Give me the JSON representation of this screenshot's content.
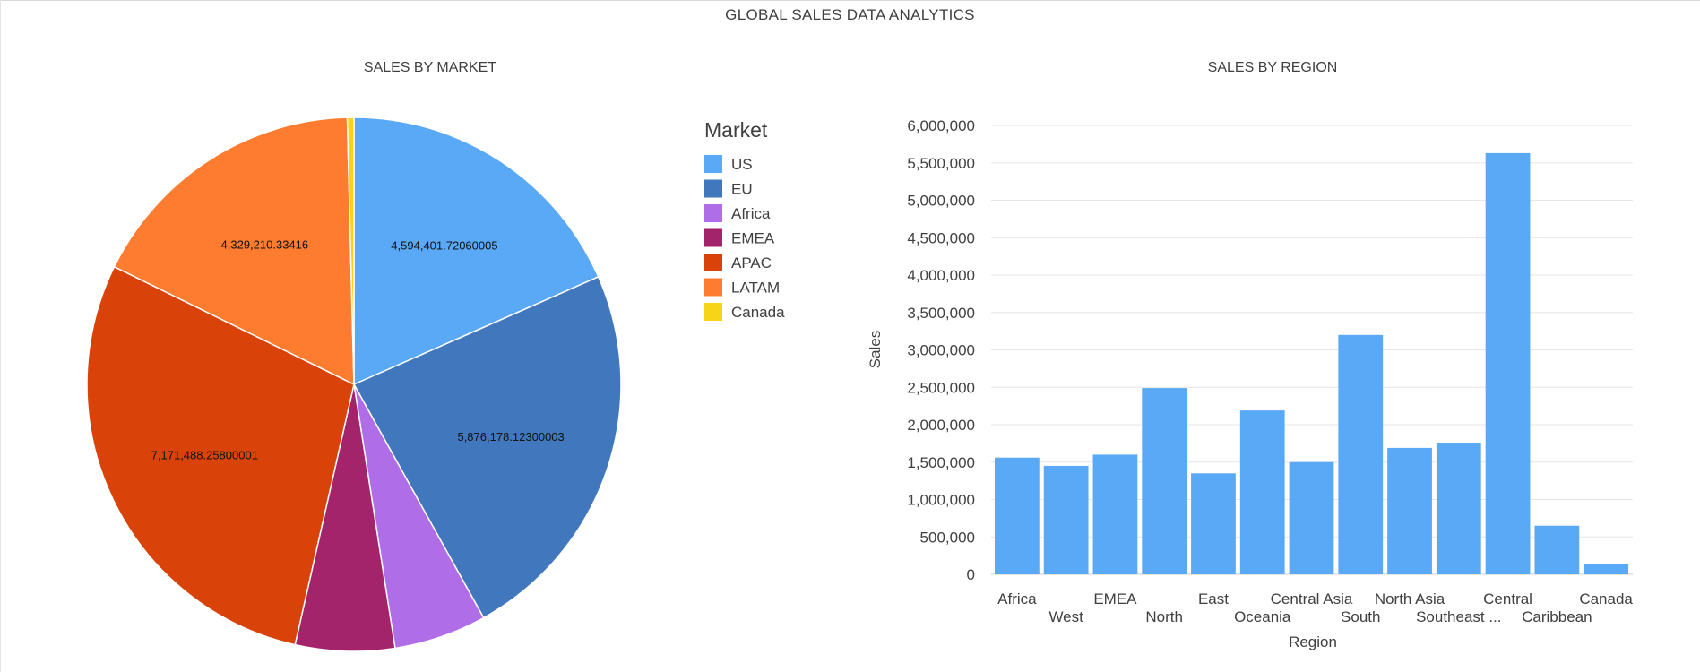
{
  "dashboard": {
    "title": "GLOBAL SALES DATA ANALYTICS"
  },
  "chart_data": [
    {
      "type": "pie",
      "title": "SALES BY MARKET",
      "legend_title": "Market",
      "legend_position": "right",
      "slices": [
        {
          "label": "US",
          "value": 4594401.72060005,
          "display": "4,594,401.72060005",
          "color": "#5aa9f6"
        },
        {
          "label": "EU",
          "value": 5876178.12300003,
          "display": "5,876,178.12300003",
          "color": "#4178bd"
        },
        {
          "label": "Africa",
          "value": 1400000,
          "display": "",
          "color": "#b06de8"
        },
        {
          "label": "EMEA",
          "value": 1500000,
          "display": "",
          "color": "#a3246b"
        },
        {
          "label": "APAC",
          "value": 7171488.25800001,
          "display": "7,171,488.25800001",
          "color": "#d9430a"
        },
        {
          "label": "LATAM",
          "value": 4329210.33416,
          "display": "4,329,210.33416",
          "color": "#fd7c30"
        },
        {
          "label": "Canada",
          "value": 100000,
          "display": "",
          "color": "#f7d417"
        }
      ]
    },
    {
      "type": "bar",
      "title": "SALES BY REGION",
      "xlabel": "Region",
      "ylabel": "Sales",
      "ylim": [
        0,
        6000000
      ],
      "yticks": [
        "0",
        "500,000",
        "1,000,000",
        "1,500,000",
        "2,000,000",
        "2,500,000",
        "3,000,000",
        "3,500,000",
        "4,000,000",
        "4,500,000",
        "5,000,000",
        "5,500,000",
        "6,000,000"
      ],
      "grid": true,
      "bar_color": "#5aa9f6",
      "categories": [
        "Africa",
        "West",
        "EMEA",
        "North",
        "East",
        "Oceania",
        "Central Asia",
        "South",
        "North Asia",
        "Southeast ...",
        "Central",
        "Caribbean",
        "Canada"
      ],
      "values": [
        1560000,
        1450000,
        1600000,
        2490000,
        1350000,
        2190000,
        1500000,
        3200000,
        1690000,
        1760000,
        5630000,
        650000,
        135000
      ]
    }
  ]
}
